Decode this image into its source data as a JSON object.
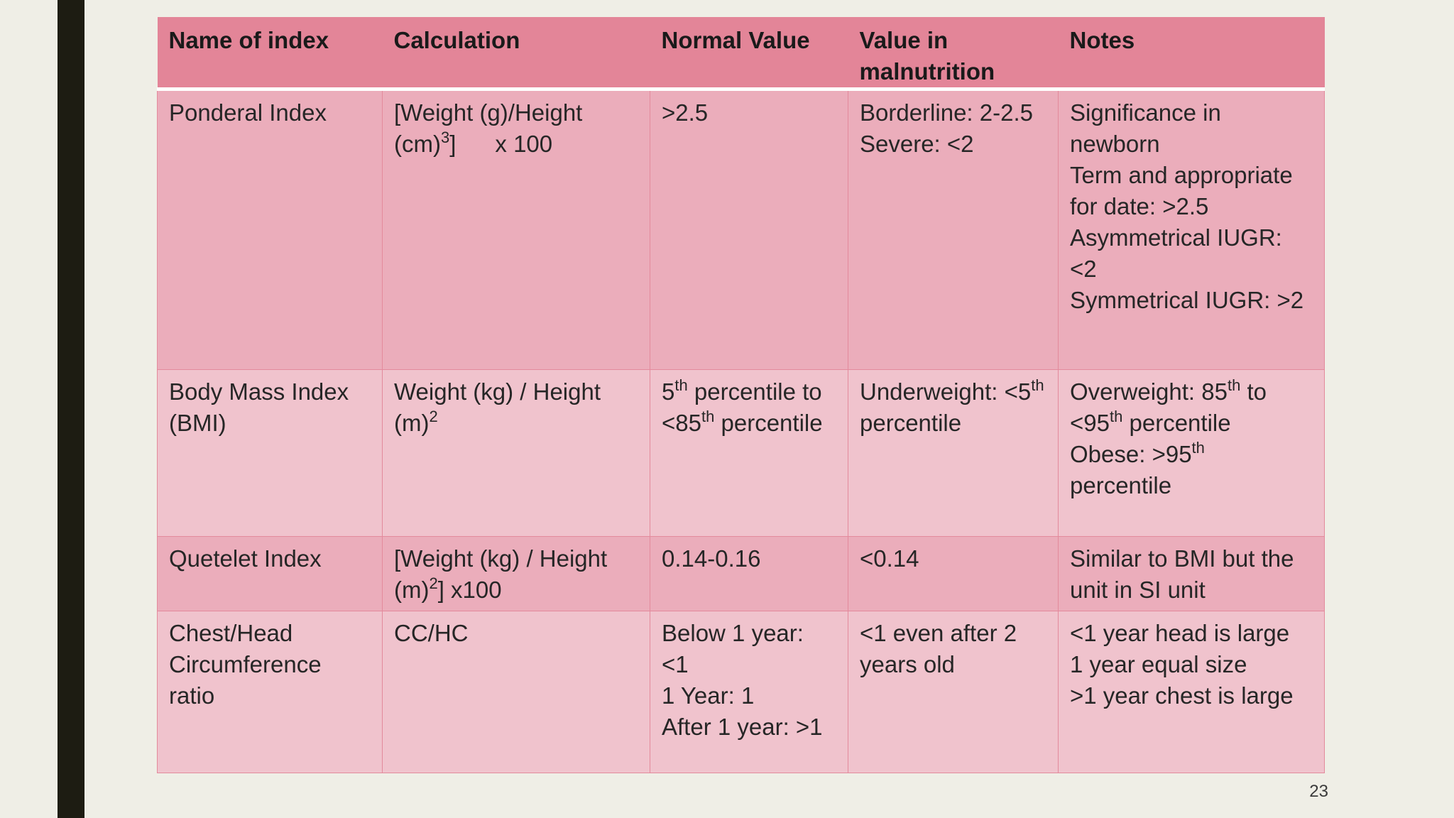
{
  "table": {
    "headers": {
      "name": "Name of index",
      "calculation": "Calculation",
      "normal": "Normal Value",
      "malnutrition_line1": "Value in",
      "malnutrition_line2": "malnutrition",
      "notes": "Notes"
    },
    "rows": [
      {
        "name": [
          "Ponderal Index"
        ],
        "calc": {
          "a": "[Weight (g)/Height (cm)",
          "sup": "3",
          "b": "]      x 100"
        },
        "normal": [
          "&gt;2.5"
        ],
        "malnutrition": [
          "Borderline: 2-2.5",
          "Severe: <2"
        ],
        "notes": [
          "Significance in newborn",
          "Term and appropriate for date: >2.5",
          "Asymmetrical IUGR: <2",
          "Symmetrical IUGR: >2"
        ]
      },
      {
        "name": [
          "Body Mass Index (BMI)"
        ],
        "calc": {
          "a": "Weight (kg) / Height (m)",
          "sup": "2",
          "b": ""
        },
        "normal": {
          "a": "5",
          "sup1": "th",
          "b": " percentile to <85",
          "sup2": "th",
          "c": " percentile"
        },
        "malnutrition": {
          "a": "Underweight: <5",
          "sup": "th",
          "b": " percentile"
        },
        "notes": {
          "a": "Overweight: 85",
          "sup1": "th",
          "b": " to <95",
          "sup2": "th",
          "c": " percentile",
          "d": "Obese: >95",
          "sup3": "th",
          "e": " percentile"
        }
      },
      {
        "name": [
          "Quetelet Index"
        ],
        "calc": {
          "a": "[Weight (kg) / Height (m)",
          "sup": "2",
          "b": "] x100"
        },
        "normal": [
          "0.14-0.16"
        ],
        "malnutrition": [
          "<0.14"
        ],
        "notes": [
          "Similar to BMI but the unit in SI unit"
        ]
      },
      {
        "name": [
          "Chest/Head Circumference ratio"
        ],
        "calc": [
          "CC/HC"
        ],
        "normal": [
          "Below 1 year: <1",
          "1 Year: 1",
          "After 1 year: >1"
        ],
        "malnutrition": [
          "<1 even after 2 years old"
        ],
        "notes": [
          "<1 year head is large",
          "1 year equal size",
          ">1 year chest is large"
        ]
      }
    ]
  },
  "page_number": "23",
  "colors": {
    "header": "#e38598",
    "row_dark": "#ebadbb",
    "row_light": "#f0c3cd",
    "background": "#efeee6",
    "side_bar": "#1d1c12"
  }
}
